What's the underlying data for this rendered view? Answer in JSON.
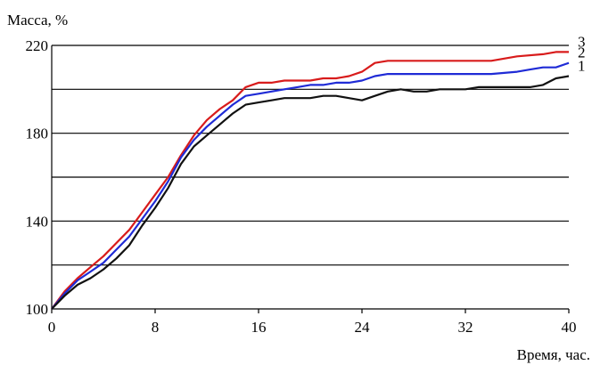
{
  "chart_data": {
    "type": "line",
    "ylabel": "Масса, %",
    "xlabel": "Время, час.",
    "xlim": [
      0,
      40
    ],
    "ylim": [
      100,
      220
    ],
    "xticks": [
      0,
      8,
      16,
      24,
      32,
      40
    ],
    "yticks": [
      100,
      140,
      180,
      220
    ],
    "ygrid": [
      120,
      140,
      160,
      180,
      200,
      220
    ],
    "grid": "horizontal",
    "series": [
      {
        "name": "3",
        "color": "#d81b1b",
        "points": [
          [
            0,
            100
          ],
          [
            1,
            108
          ],
          [
            2,
            114
          ],
          [
            3,
            119
          ],
          [
            4,
            124
          ],
          [
            5,
            130
          ],
          [
            6,
            136
          ],
          [
            7,
            144
          ],
          [
            8,
            152
          ],
          [
            9,
            160
          ],
          [
            10,
            170
          ],
          [
            11,
            179
          ],
          [
            12,
            186
          ],
          [
            13,
            191
          ],
          [
            14,
            195
          ],
          [
            15,
            201
          ],
          [
            16,
            203
          ],
          [
            17,
            203
          ],
          [
            18,
            204
          ],
          [
            19,
            204
          ],
          [
            20,
            204
          ],
          [
            21,
            205
          ],
          [
            22,
            205
          ],
          [
            23,
            206
          ],
          [
            24,
            208
          ],
          [
            25,
            212
          ],
          [
            26,
            213
          ],
          [
            28,
            213
          ],
          [
            30,
            213
          ],
          [
            32,
            213
          ],
          [
            33,
            213
          ],
          [
            34,
            213
          ],
          [
            36,
            215
          ],
          [
            38,
            216
          ],
          [
            39,
            217
          ],
          [
            40,
            217
          ]
        ]
      },
      {
        "name": "2",
        "color": "#1f2bd6",
        "points": [
          [
            0,
            100
          ],
          [
            1,
            107
          ],
          [
            2,
            113
          ],
          [
            3,
            117
          ],
          [
            4,
            121
          ],
          [
            5,
            127
          ],
          [
            6,
            133
          ],
          [
            7,
            141
          ],
          [
            8,
            149
          ],
          [
            9,
            158
          ],
          [
            10,
            169
          ],
          [
            11,
            177
          ],
          [
            12,
            183
          ],
          [
            13,
            188
          ],
          [
            14,
            193
          ],
          [
            15,
            197
          ],
          [
            16,
            198
          ],
          [
            17,
            199
          ],
          [
            18,
            200
          ],
          [
            19,
            201
          ],
          [
            20,
            202
          ],
          [
            21,
            202
          ],
          [
            22,
            203
          ],
          [
            23,
            203
          ],
          [
            24,
            204
          ],
          [
            25,
            206
          ],
          [
            26,
            207
          ],
          [
            28,
            207
          ],
          [
            30,
            207
          ],
          [
            32,
            207
          ],
          [
            34,
            207
          ],
          [
            36,
            208
          ],
          [
            37,
            209
          ],
          [
            38,
            210
          ],
          [
            39,
            210
          ],
          [
            40,
            212
          ]
        ]
      },
      {
        "name": "1",
        "color": "#111111",
        "points": [
          [
            0,
            100
          ],
          [
            1,
            106
          ],
          [
            2,
            111
          ],
          [
            3,
            114
          ],
          [
            4,
            118
          ],
          [
            5,
            123
          ],
          [
            6,
            129
          ],
          [
            7,
            138
          ],
          [
            8,
            146
          ],
          [
            9,
            155
          ],
          [
            10,
            166
          ],
          [
            11,
            174
          ],
          [
            12,
            179
          ],
          [
            13,
            184
          ],
          [
            14,
            189
          ],
          [
            15,
            193
          ],
          [
            16,
            194
          ],
          [
            17,
            195
          ],
          [
            18,
            196
          ],
          [
            19,
            196
          ],
          [
            20,
            196
          ],
          [
            21,
            197
          ],
          [
            22,
            197
          ],
          [
            23,
            196
          ],
          [
            24,
            195
          ],
          [
            25,
            197
          ],
          [
            26,
            199
          ],
          [
            27,
            200
          ],
          [
            28,
            199
          ],
          [
            29,
            199
          ],
          [
            30,
            200
          ],
          [
            31,
            200
          ],
          [
            32,
            200
          ],
          [
            33,
            201
          ],
          [
            34,
            201
          ],
          [
            35,
            201
          ],
          [
            36,
            201
          ],
          [
            37,
            201
          ],
          [
            38,
            202
          ],
          [
            39,
            205
          ],
          [
            40,
            206
          ]
        ]
      }
    ]
  }
}
